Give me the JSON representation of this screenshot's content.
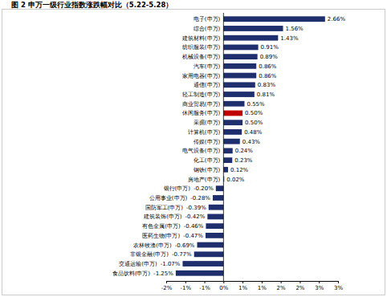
{
  "chart_data": {
    "type": "bar",
    "orientation": "horizontal",
    "title": "图 2  申万一级行业指数涨跌幅对比（5.22-5.28）",
    "categories": [
      "电子(申万)",
      "综合(申万)",
      "建筑材料(申万)",
      "纺织服装(申万)",
      "机械设备(申万)",
      "汽车(申万)",
      "家用电器(申万)",
      "通信(申万)",
      "轻工制造(申万)",
      "商业贸易(申万)",
      "休闲服务(申万)",
      "采掘(申万)",
      "计算机(申万)",
      "传媒(申万)",
      "电气设备(申万)",
      "化工(申万)",
      "钢铁(申万)",
      "房地产(申万)",
      "银行(申万)",
      "公用事业(申万)",
      "国防军工(申万)",
      "建筑装饰(申万)",
      "有色金属(申万)",
      "医药生物(申万)",
      "农林牧渔(申万)",
      "非银金融(申万)",
      "交通运输(申万)",
      "食品饮料(申万)"
    ],
    "values": [
      2.66,
      1.56,
      1.43,
      0.91,
      0.89,
      0.86,
      0.86,
      0.83,
      0.81,
      0.55,
      0.5,
      0.5,
      0.48,
      0.43,
      0.24,
      0.23,
      0.12,
      0.02,
      -0.2,
      -0.28,
      -0.39,
      -0.42,
      -0.46,
      -0.47,
      -0.69,
      -0.77,
      -1.07,
      -1.25
    ],
    "value_labels": [
      "2.66%",
      "1.56%",
      "1.43%",
      "0.91%",
      "0.89%",
      "0.86%",
      "0.86%",
      "0.83%",
      "0.81%",
      "0.55%",
      "0.50%",
      "0.50%",
      "0.48%",
      "0.43%",
      "0.24%",
      "0.23%",
      "0.12%",
      "0.02%",
      "-0.20%",
      "-0.28%",
      "-0.39%",
      "-0.42%",
      "-0.46%",
      "-0.47%",
      "-0.69%",
      "-0.77%",
      "-1.07%",
      "-1.25%"
    ],
    "colors": [
      "#1f2f6e",
      "#1f2f6e",
      "#1f2f6e",
      "#1f2f6e",
      "#1f2f6e",
      "#1f2f6e",
      "#1f2f6e",
      "#1f2f6e",
      "#1f2f6e",
      "#1f2f6e",
      "#c00000",
      "#1f2f6e",
      "#1f2f6e",
      "#1f2f6e",
      "#1f2f6e",
      "#1f2f6e",
      "#1f2f6e",
      "#1f2f6e",
      "#1f2f6e",
      "#1f2f6e",
      "#1f2f6e",
      "#1f2f6e",
      "#1f2f6e",
      "#1f2f6e",
      "#1f2f6e",
      "#1f2f6e",
      "#1f2f6e",
      "#1f2f6e"
    ],
    "xlim": [
      -1.5,
      3
    ],
    "xticks": [
      {
        "value": -1.5,
        "label": "-2%"
      },
      {
        "value": -1,
        "label": "-1%"
      },
      {
        "value": -0.5,
        "label": "-1%"
      },
      {
        "value": 0,
        "label": "0%"
      },
      {
        "value": 0.5,
        "label": "1%"
      },
      {
        "value": 1,
        "label": "1%"
      },
      {
        "value": 1.5,
        "label": "2%"
      },
      {
        "value": 2,
        "label": "2%"
      },
      {
        "value": 2.5,
        "label": "3%"
      },
      {
        "value": 3,
        "label": "3%"
      }
    ],
    "data_labels": true,
    "grid": false
  }
}
